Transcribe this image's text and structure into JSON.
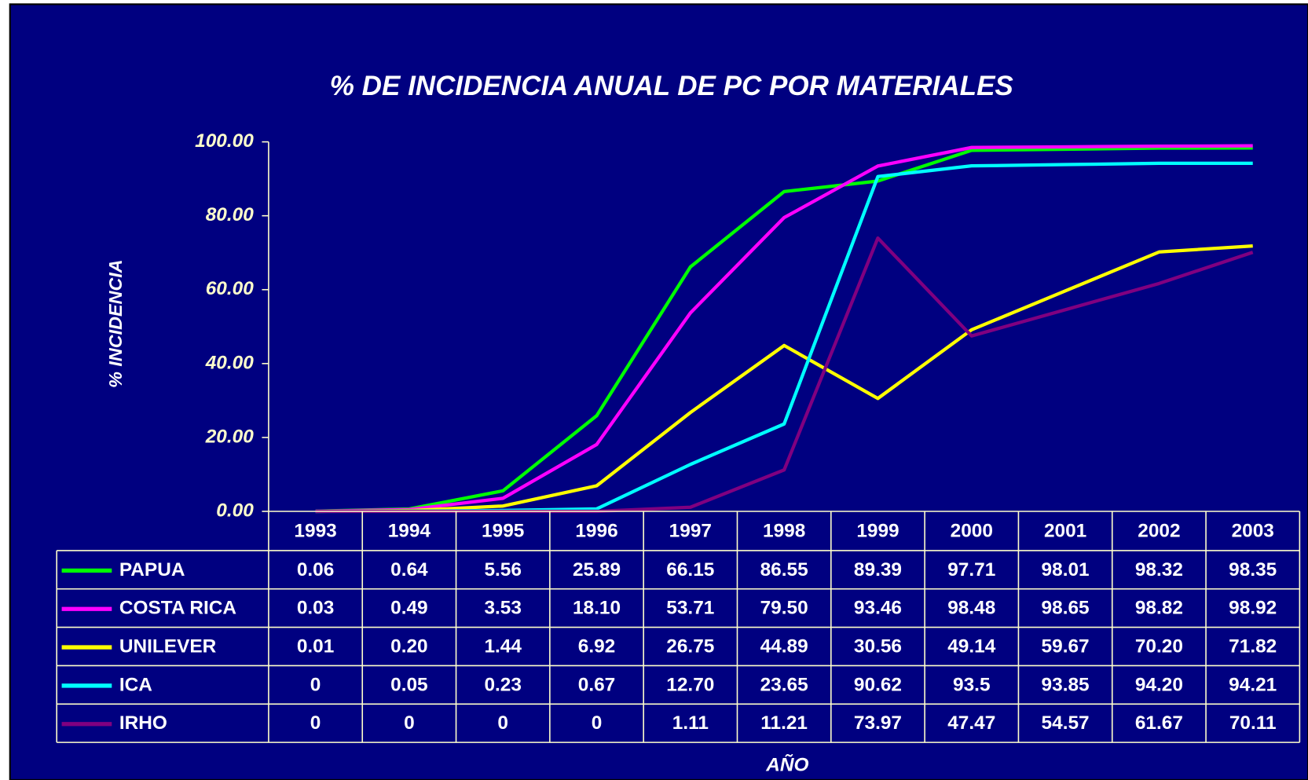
{
  "chart_data": {
    "type": "line",
    "title": "% DE INCIDENCIA ANUAL DE PC POR MATERIALES",
    "y_label": "% INCIDENCIA",
    "x_label": "AÑO",
    "categories": [
      "1993",
      "1994",
      "1995",
      "1996",
      "1997",
      "1998",
      "1999",
      "2000",
      "2001",
      "2002",
      "2003"
    ],
    "ylim": [
      0,
      100
    ],
    "yticks": [
      {
        "value": 0,
        "label": "0.00"
      },
      {
        "value": 20,
        "label": "20.00"
      },
      {
        "value": 40,
        "label": "40.00"
      },
      {
        "value": 60,
        "label": "60.00"
      },
      {
        "value": 80,
        "label": "80.00"
      },
      {
        "value": 100,
        "label": "100.00"
      }
    ],
    "series": [
      {
        "name": "PAPUA",
        "color": "#00ff00",
        "values": [
          0.06,
          0.64,
          5.56,
          25.89,
          66.15,
          86.55,
          89.39,
          97.71,
          98.01,
          98.32,
          98.35
        ]
      },
      {
        "name": "COSTA RICA",
        "color": "#ff00ff",
        "values": [
          0.03,
          0.49,
          3.53,
          18.1,
          53.71,
          79.5,
          93.46,
          98.48,
          98.65,
          98.82,
          98.92
        ],
        "value_labels": [
          "0.03",
          "0.49",
          "3.53",
          "18.10",
          "53.71",
          "79.50",
          "93.46",
          "98.48",
          "98.65",
          "98.82",
          "98.92"
        ]
      },
      {
        "name": "UNILEVER",
        "color": "#ffff00",
        "values": [
          0.01,
          0.2,
          1.44,
          6.92,
          26.75,
          44.89,
          30.56,
          49.14,
          59.67,
          70.2,
          71.82
        ],
        "value_labels": [
          "0.01",
          "0.20",
          "1.44",
          "6.92",
          "26.75",
          "44.89",
          "30.56",
          "49.14",
          "59.67",
          "70.20",
          "71.82"
        ]
      },
      {
        "name": "ICA",
        "color": "#00ffff",
        "values": [
          0,
          0.05,
          0.23,
          0.67,
          12.7,
          23.65,
          90.62,
          93.5,
          93.85,
          94.2,
          94.21
        ],
        "value_labels": [
          "0",
          "0.05",
          "0.23",
          "0.67",
          "12.70",
          "23.65",
          "90.62",
          "93.5",
          "93.85",
          "94.20",
          "94.21"
        ]
      },
      {
        "name": "IRHO",
        "color": "#800080",
        "values": [
          0,
          0,
          0,
          0,
          1.11,
          11.21,
          73.97,
          47.47,
          54.57,
          61.67,
          70.11
        ]
      }
    ]
  }
}
